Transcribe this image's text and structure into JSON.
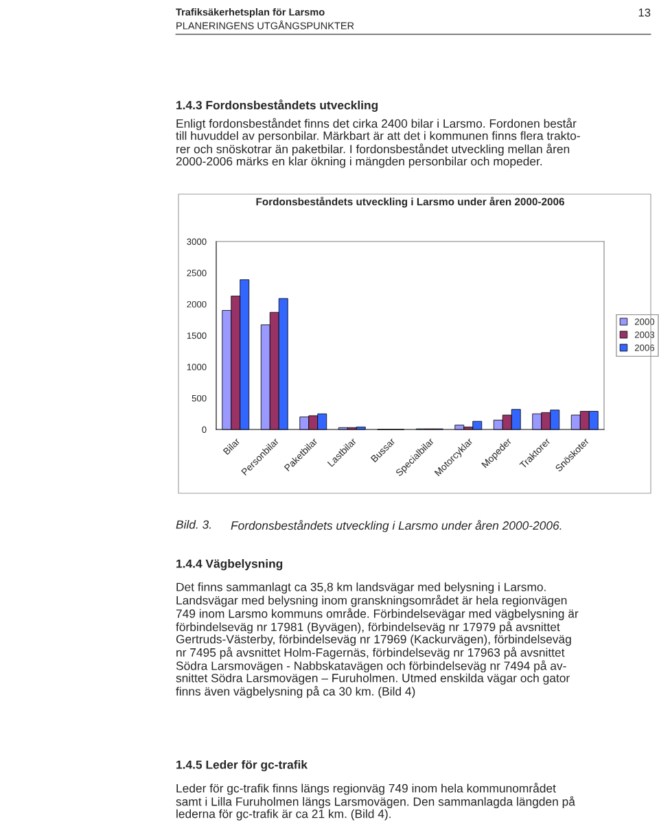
{
  "chart_data": {
    "type": "bar",
    "title": "Fordonsbeståndets utveckling i Larsmo under åren 2000-2006",
    "categories": [
      "Bilar",
      "Personbilar",
      "Paketbilar",
      "Lastbilar",
      "Bussar",
      "Specialbilar",
      "Motorcyklar",
      "Mopeder",
      "Traktorer",
      "Snöskoter"
    ],
    "series": [
      {
        "name": "2000",
        "color": "#9999ff",
        "values": [
          1900,
          1670,
          200,
          30,
          0,
          10,
          70,
          150,
          250,
          230
        ]
      },
      {
        "name": "2003",
        "color": "#993366",
        "values": [
          2130,
          1870,
          220,
          30,
          0,
          10,
          40,
          230,
          270,
          290
        ]
      },
      {
        "name": "2006",
        "color": "#3366ff",
        "values": [
          2390,
          2090,
          250,
          40,
          0,
          10,
          130,
          320,
          310,
          290
        ]
      }
    ],
    "ylim": [
      0,
      3000
    ],
    "yticks": [
      0,
      500,
      1000,
      1500,
      2000,
      2500,
      3000
    ],
    "grid": false,
    "legend": "right",
    "annotations": [
      "Trafiksäkerhetsplan för Larsmo",
      "PLANERINGENS UTGÅNGSPUNKTER",
      "13",
      "1.4.3 Fordonsbeståndets utveckling",
      "Enligt fordonsbeståndet finns det cirka 2400 bilar i Larsmo. Fordonen består\ntill huvuddel av personbilar. Märkbart är att det i kommunen finns flera trakto-\nrer och snöskotrar än paketbilar. I fordonsbeståndet utveckling mellan åren\n2000-2006 märks en klar ökning i mängden personbilar och mopeder.",
      "Bild. 3.",
      "Fordonsbeståndets utveckling i Larsmo under åren 2000-2006.",
      "1.4.4 Vägbelysning",
      "Det finns sammanlagt ca 35,8 km landsvägar med belysning i Larsmo.\nLandsvägar med belysning inom granskningsområdet är hela regionvägen\n749 inom Larsmo kommuns område. Förbindelsevägar med vägbelysning är\nförbindelseväg nr 17981 (Byvägen), förbindelseväg nr 17979 på avsnittet\nGertruds-Västerby, förbindelseväg nr 17969 (Kackurvägen), förbindelseväg\nnr 7495 på avsnittet Holm-Fagernäs, förbindelseväg nr 17963 på avsnittet\nSödra Larsmovägen - Nabbskatavägen och förbindelseväg nr 7494 på av-\nsnittet Södra Larsmovägen – Furuholmen. Utmed enskilda vägar och gator\nfinns även vägbelysning på ca 30 km. (Bild 4)",
      "1.4.5 Leder för gc-trafik",
      "Leder för gc-trafik finns längs regionväg 749 inom hela kommunområdet\nsamt i Lilla Furuholmen längs Larsmovägen. Den sammanlagda längden på\nlederna för gc-trafik är ca 21 km. (Bild 4)."
    ]
  }
}
